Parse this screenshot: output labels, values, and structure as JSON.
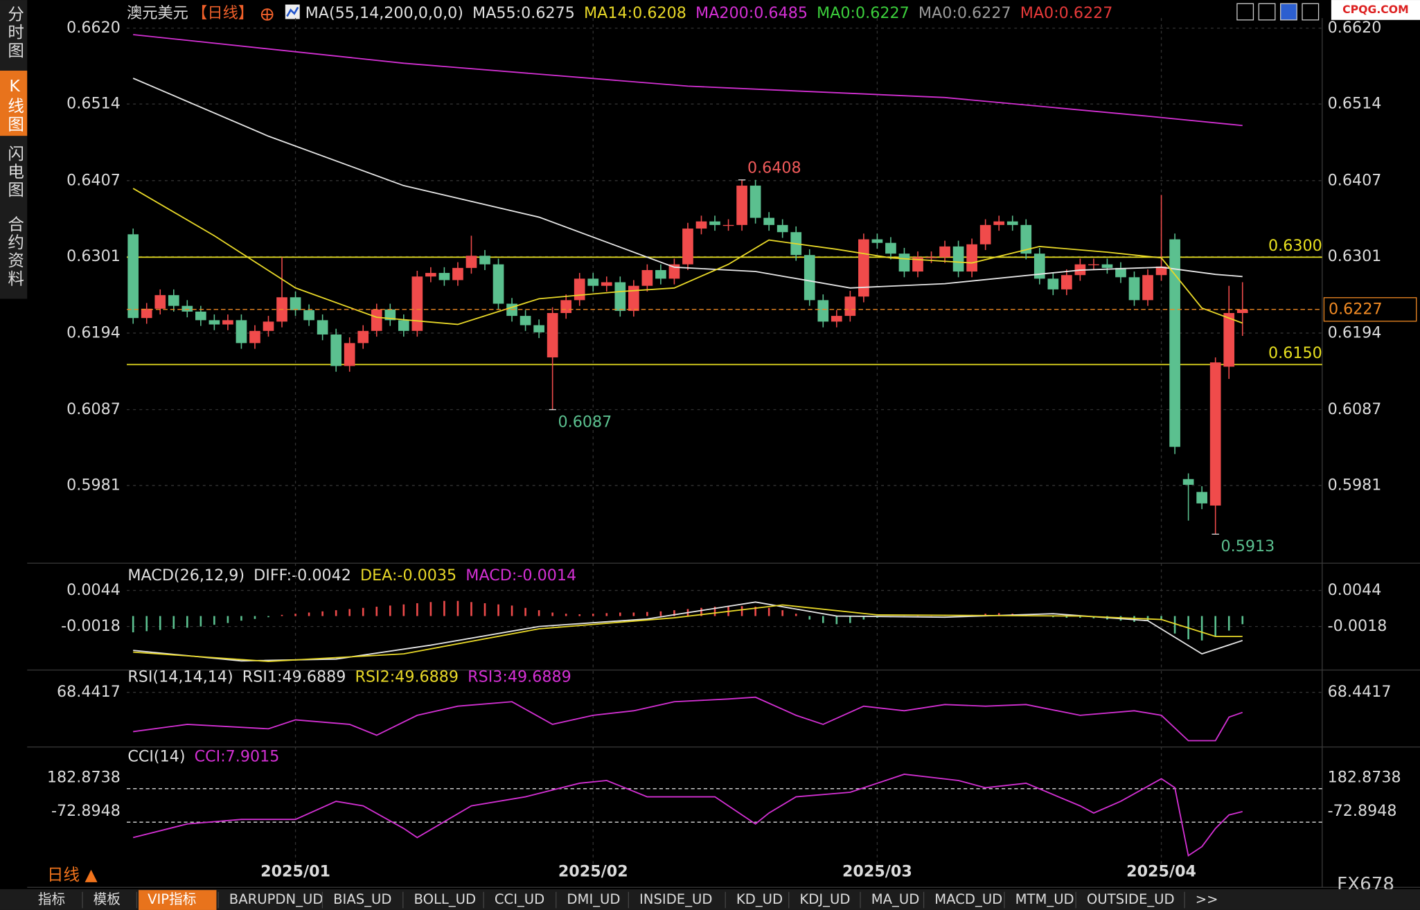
{
  "sidebar": [
    "分时图",
    "K线图",
    "闪电图",
    "合约资料"
  ],
  "logo": "CPQG.COM",
  "brand": "FX678",
  "period": "日线 ▲",
  "tabs": [
    "指标",
    "模板",
    "VIP指标",
    "BARUPDN_UD",
    "BIAS_UD",
    "BOLL_UD",
    "CCI_UD",
    "DMI_UD",
    "INSIDE_UD",
    "KD_UD",
    "KDJ_UD",
    "MA_UD",
    "MACD_UD",
    "MTM_UD",
    "OUTSIDE_UD",
    ">>"
  ],
  "chart_data": {
    "type": "candlestick",
    "title": "澳元美元",
    "period_tag": "【日线】",
    "legend": [
      {
        "text": "MA(55,14,200,0,0,0)",
        "color": "#e0e0e0"
      },
      {
        "text": "MA55:0.6275",
        "color": "#e0e0e0"
      },
      {
        "text": "MA14:0.6208",
        "color": "#e8d828"
      },
      {
        "text": "MA200:0.6485",
        "color": "#d430d4"
      },
      {
        "text": "MA0:0.6227",
        "color": "#3ccf3c"
      },
      {
        "text": "MA0:0.6227",
        "color": "#9a9a9a"
      },
      {
        "text": "MA0:0.6227",
        "color": "#e83a3a"
      }
    ],
    "up_color": "#f04b4b",
    "down_color": "#5bc08f",
    "categories": [
      null,
      null,
      null,
      null,
      null,
      null,
      null,
      null,
      null,
      null,
      null,
      null,
      "2025/01",
      null,
      null,
      null,
      null,
      null,
      null,
      null,
      null,
      null,
      null,
      null,
      null,
      null,
      null,
      null,
      null,
      null,
      null,
      null,
      null,
      null,
      "2025/02",
      null,
      null,
      null,
      null,
      null,
      null,
      null,
      null,
      null,
      null,
      null,
      null,
      null,
      null,
      null,
      null,
      null,
      null,
      null,
      null,
      "2025/03",
      null,
      null,
      null,
      null,
      null,
      null,
      null,
      null,
      null,
      null,
      null,
      null,
      null,
      null,
      null,
      null,
      null,
      null,
      null,
      null,
      "2025/04",
      null,
      null,
      null,
      null,
      null,
      null
    ],
    "open": [
      0.6332,
      0.6215,
      0.6228,
      0.6247,
      0.6232,
      0.6224,
      0.6212,
      0.6206,
      0.6212,
      0.618,
      0.6197,
      0.621,
      0.6244,
      0.6226,
      0.6212,
      0.6192,
      0.6148,
      0.618,
      0.6197,
      0.6227,
      0.6212,
      0.6197,
      0.6273,
      0.6278,
      0.6268,
      0.6285,
      0.6302,
      0.629,
      0.6235,
      0.6218,
      0.6205,
      0.616,
      0.6222,
      0.624,
      0.627,
      0.626,
      0.6265,
      0.6225,
      0.626,
      0.6282,
      0.627,
      0.629,
      0.634,
      0.635,
      0.6345,
      0.6345,
      0.64,
      0.6355,
      0.6345,
      0.6335,
      0.6303,
      0.624,
      0.621,
      0.6218,
      0.6245,
      0.6325,
      0.632,
      0.6305,
      0.628,
      0.63,
      0.63,
      0.6315,
      0.628,
      0.6318,
      0.6345,
      0.635,
      0.6345,
      0.6305,
      0.627,
      0.6255,
      0.6275,
      0.629,
      0.629,
      0.6285,
      0.6272,
      0.624,
      0.6275,
      0.6325,
      0.599,
      0.5972,
      0.5953,
      0.6147,
      0.6222
    ],
    "high": [
      0.634,
      0.6236,
      0.6255,
      0.6255,
      0.624,
      0.6232,
      0.622,
      0.622,
      0.622,
      0.6205,
      0.6218,
      0.63,
      0.6252,
      0.6234,
      0.622,
      0.62,
      0.6188,
      0.6205,
      0.6235,
      0.6235,
      0.622,
      0.6281,
      0.6286,
      0.6286,
      0.6293,
      0.633,
      0.631,
      0.6298,
      0.6243,
      0.6226,
      0.6213,
      0.623,
      0.6248,
      0.6278,
      0.6278,
      0.6273,
      0.6273,
      0.6268,
      0.629,
      0.629,
      0.6298,
      0.6348,
      0.6358,
      0.6358,
      0.6353,
      0.6408,
      0.6408,
      0.6363,
      0.6353,
      0.6343,
      0.6311,
      0.6248,
      0.6226,
      0.6253,
      0.6333,
      0.6333,
      0.6328,
      0.6313,
      0.6308,
      0.6308,
      0.6323,
      0.6323,
      0.6326,
      0.6353,
      0.6358,
      0.6358,
      0.6353,
      0.6313,
      0.6278,
      0.6283,
      0.6298,
      0.6298,
      0.6298,
      0.6293,
      0.628,
      0.6283,
      0.6387,
      0.6333,
      0.5998,
      0.598,
      0.616,
      0.626,
      0.6265
    ],
    "low": [
      0.6207,
      0.6207,
      0.622,
      0.6224,
      0.6216,
      0.6204,
      0.6198,
      0.6198,
      0.6172,
      0.6172,
      0.6189,
      0.6202,
      0.6218,
      0.6204,
      0.6184,
      0.614,
      0.614,
      0.6172,
      0.6189,
      0.6204,
      0.6189,
      0.6189,
      0.6265,
      0.626,
      0.626,
      0.6277,
      0.6282,
      0.6227,
      0.621,
      0.6197,
      0.6187,
      0.6087,
      0.6214,
      0.6232,
      0.6252,
      0.6252,
      0.6217,
      0.6217,
      0.6252,
      0.6262,
      0.6262,
      0.6282,
      0.6332,
      0.6337,
      0.6337,
      0.6337,
      0.6347,
      0.6337,
      0.6327,
      0.6295,
      0.6232,
      0.6202,
      0.6202,
      0.621,
      0.6237,
      0.6312,
      0.6297,
      0.6272,
      0.6272,
      0.6292,
      0.6292,
      0.6272,
      0.6272,
      0.631,
      0.6337,
      0.6337,
      0.6297,
      0.6262,
      0.6247,
      0.6247,
      0.6267,
      0.6282,
      0.6277,
      0.6264,
      0.6232,
      0.6232,
      0.6267,
      0.6025,
      0.5932,
      0.5948,
      0.5913,
      0.613,
      0.619
    ],
    "close": [
      0.6215,
      0.6228,
      0.6247,
      0.6232,
      0.6224,
      0.6212,
      0.6206,
      0.6212,
      0.618,
      0.6197,
      0.621,
      0.6244,
      0.6226,
      0.6212,
      0.6192,
      0.6148,
      0.618,
      0.6197,
      0.6227,
      0.6212,
      0.6197,
      0.6273,
      0.6278,
      0.6268,
      0.6285,
      0.6302,
      0.629,
      0.6235,
      0.6218,
      0.6205,
      0.6195,
      0.6222,
      0.624,
      0.627,
      0.626,
      0.6265,
      0.6225,
      0.626,
      0.6282,
      0.627,
      0.629,
      0.634,
      0.635,
      0.6345,
      0.6345,
      0.64,
      0.6355,
      0.6345,
      0.6335,
      0.6303,
      0.624,
      0.621,
      0.6218,
      0.6245,
      0.6325,
      0.632,
      0.6305,
      0.628,
      0.63,
      0.63,
      0.6315,
      0.628,
      0.6318,
      0.6345,
      0.635,
      0.6345,
      0.6305,
      0.627,
      0.6255,
      0.6275,
      0.629,
      0.629,
      0.6285,
      0.6272,
      0.624,
      0.6275,
      0.6287,
      0.6035,
      0.5982,
      0.5956,
      0.6153,
      0.6222,
      0.6227
    ],
    "ylim": [
      0.5875,
      0.6634
    ],
    "yticks": [
      0.5981,
      0.6087,
      0.6194,
      0.6301,
      0.6407,
      0.6514,
      {
        "value": 0.662,
        "label": "0.6620"
      }
    ],
    "grid": true,
    "series": [
      {
        "color": "#d430d4",
        "x": [
          0,
          20,
          41,
          60,
          75,
          82
        ],
        "values": [
          0.6611,
          0.6571,
          0.6539,
          0.6523,
          0.6497,
          0.6484
        ]
      },
      {
        "color": "#e6e6e6",
        "x": [
          0,
          10,
          20,
          30,
          40,
          46,
          53,
          60,
          70,
          76,
          80,
          82
        ],
        "values": [
          0.655,
          0.6469,
          0.64,
          0.6356,
          0.6286,
          0.628,
          0.6257,
          0.6263,
          0.6282,
          0.6286,
          0.6276,
          0.6273
        ]
      },
      {
        "color": "#e8d828",
        "x": [
          0,
          6,
          12,
          18,
          24,
          30,
          36,
          40,
          44,
          47,
          52,
          56,
          62,
          67,
          72,
          76,
          79,
          82
        ],
        "values": [
          0.6396,
          0.633,
          0.6257,
          0.6216,
          0.6206,
          0.6242,
          0.6252,
          0.6257,
          0.629,
          0.6324,
          0.6311,
          0.6299,
          0.6292,
          0.6315,
          0.6307,
          0.6299,
          0.6229,
          0.6208
        ]
      }
    ],
    "hlines": [
      {
        "value": 0.63,
        "label": "0.6300",
        "color": "#e8e020"
      },
      {
        "value": 0.615,
        "label": "0.6150",
        "color": "#e8e020"
      }
    ],
    "last_price": {
      "value": 0.6227,
      "label": "0.6227",
      "color": "#f08a24"
    },
    "annotations": [
      {
        "value": 0.6408,
        "at": 45,
        "color": "#f05a5a",
        "side": "above"
      },
      {
        "value": 0.6087,
        "at": 31,
        "color": "#5bc08f",
        "side": "below"
      },
      {
        "value": 0.5913,
        "at": 80,
        "color": "#5bc08f",
        "side": "below"
      }
    ],
    "macd": {
      "labels": [
        {
          "text": "MACD(26,12,9)",
          "color": "#e0e0e0"
        },
        {
          "text": "DIFF:-0.0042",
          "color": "#e0e0e0"
        },
        {
          "text": "DEA:-0.0035",
          "color": "#e8d828"
        },
        {
          "text": "MACD:-0.0014",
          "color": "#d430d4"
        }
      ],
      "ylim": [
        -0.0085,
        0.0055
      ],
      "yticks": [
        0.0044,
        -0.0018
      ],
      "histogram": [
        -0.0028,
        -0.0026,
        -0.0024,
        -0.0022,
        -0.002,
        -0.0018,
        -0.0015,
        -0.0012,
        -0.0008,
        -0.0005,
        -0.0002,
        0.0002,
        0.0004,
        0.0006,
        0.0008,
        0.001,
        0.0012,
        0.0014,
        0.0016,
        0.0018,
        0.002,
        0.0022,
        0.0024,
        0.0026,
        0.0026,
        0.0024,
        0.0022,
        0.002,
        0.0018,
        0.0014,
        0.001,
        0.0006,
        0.0004,
        0.0003,
        0.0004,
        0.0005,
        0.0006,
        0.0006,
        0.0007,
        0.0008,
        0.001,
        0.0012,
        0.0014,
        0.0016,
        0.0017,
        0.0017,
        0.0016,
        0.0014,
        0.001,
        0.0004,
        -0.0006,
        -0.0012,
        -0.0014,
        -0.0012,
        -0.0006,
        -0.0003,
        -0.0002,
        -0.0001,
        0.0001,
        0.0002,
        0.0002,
        0.0001,
        0.0002,
        0.0004,
        0.0005,
        0.0004,
        0.0002,
        0,
        -0.0002,
        -0.0003,
        -0.0003,
        -0.0004,
        -0.0006,
        -0.0008,
        -0.001,
        -0.0008,
        -0.0006,
        -0.003,
        -0.004,
        -0.0042,
        -0.0035,
        -0.0025,
        -0.0014
      ],
      "series": [
        {
          "color": "#e6e6e6",
          "x": [
            0,
            8,
            15,
            22,
            30,
            38,
            46,
            52,
            60,
            68,
            75,
            79,
            82
          ],
          "values": [
            -0.0059,
            -0.0077,
            -0.0074,
            -0.005,
            -0.0018,
            -0.0005,
            0.0024,
            0,
            -0.0002,
            0.0004,
            -0.0008,
            -0.0065,
            -0.0042
          ]
        },
        {
          "color": "#e8d828",
          "x": [
            0,
            10,
            20,
            30,
            40,
            48,
            55,
            70,
            76,
            80,
            82
          ],
          "values": [
            -0.0062,
            -0.0078,
            -0.0065,
            -0.0022,
            -0.0003,
            0.0019,
            0.0002,
            0,
            -0.0006,
            -0.0035,
            -0.0035
          ]
        }
      ]
    },
    "rsi": {
      "labels": [
        {
          "text": "RSI(14,14,14)",
          "color": "#e0e0e0"
        },
        {
          "text": "RSI1:49.6889",
          "color": "#e0e0e0"
        },
        {
          "text": "RSI2:49.6889",
          "color": "#e8d828"
        },
        {
          "text": "RSI3:49.6889",
          "color": "#d430d4"
        }
      ],
      "ylim": [
        20,
        85
      ],
      "yticks": [
        68.4417
      ],
      "series": [
        {
          "color": "#d430d4",
          "x": [
            0,
            4,
            10,
            12,
            16,
            18,
            21,
            24,
            28,
            31,
            34,
            37,
            40,
            44,
            46,
            49,
            51,
            54,
            57,
            60,
            63,
            66,
            70,
            74,
            76,
            78,
            80,
            81,
            82
          ],
          "values": [
            31.8,
            38.6,
            34.4,
            42.8,
            38.6,
            28.4,
            47.0,
            55.5,
            59.7,
            38.6,
            47.0,
            51.2,
            59.7,
            62.2,
            63.9,
            47.0,
            38.6,
            55.5,
            51.2,
            57.1,
            55.5,
            57.1,
            47.0,
            51.2,
            47.0,
            23.4,
            23.4,
            45.3,
            49.6889
          ]
        }
      ]
    },
    "cci": {
      "labels": [
        {
          "text": "CCI(14)",
          "color": "#e0e0e0"
        },
        {
          "text": "CCI:7.9015",
          "color": "#d430d4"
        }
      ],
      "ylim": [
        -398,
        363
      ],
      "yticks": [
        182.8738,
        -72.8948
      ],
      "series": [
        {
          "color": "#d430d4",
          "x": [
            0,
            4,
            8,
            12,
            15,
            17,
            20,
            21,
            25,
            29,
            33,
            35,
            38,
            43,
            46,
            47,
            49,
            53,
            57,
            61,
            63,
            66,
            70,
            71,
            73,
            76,
            77,
            78,
            79,
            80,
            81,
            82
          ],
          "values": [
            -190.3,
            -86.7,
            -52.1,
            -52.1,
            86.1,
            51.6,
            -121.2,
            -190.3,
            51.6,
            120.7,
            224.3,
            245.1,
            120.7,
            120.7,
            -86.7,
            -3.0,
            120.7,
            155.2,
            293.4,
            245.1,
            189.8,
            224.3,
            51.6,
            -3.0,
            86.1,
            258.9,
            189.8,
            -328.5,
            -259.4,
            -121.2,
            -17.5,
            7.9015
          ]
        }
      ]
    }
  }
}
